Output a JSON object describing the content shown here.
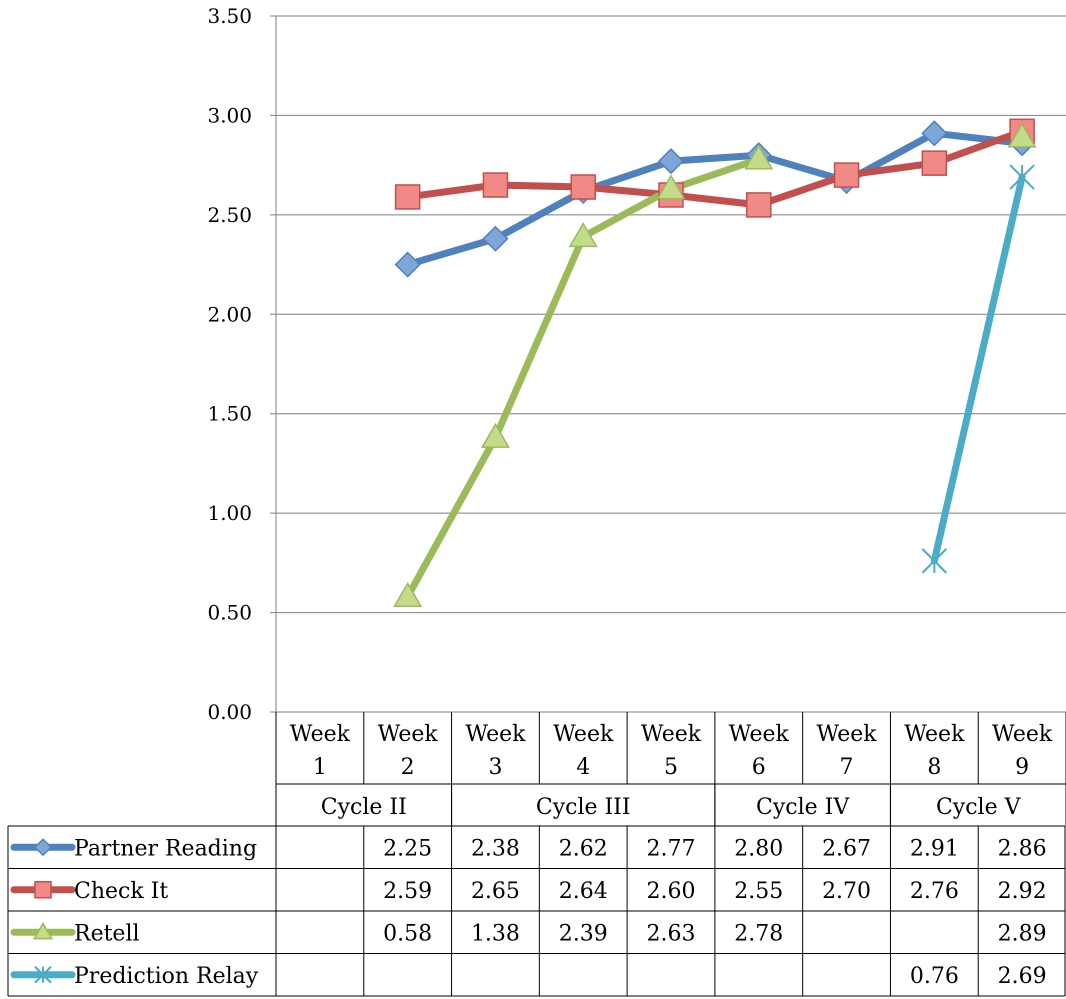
{
  "chart_data": {
    "type": "line",
    "title": "",
    "xlabel": "",
    "ylabel": "",
    "ylim": [
      0,
      3.5
    ],
    "yticks": [
      "0.00",
      "0.50",
      "1.00",
      "1.50",
      "2.00",
      "2.50",
      "3.00",
      "3.50"
    ],
    "grid": true,
    "legend": "data-table",
    "categories": [
      [
        "Week",
        "1"
      ],
      [
        "Week",
        "2"
      ],
      [
        "Week",
        "3"
      ],
      [
        "Week",
        "4"
      ],
      [
        "Week",
        "5"
      ],
      [
        "Week",
        "6"
      ],
      [
        "Week",
        "7"
      ],
      [
        "Week",
        "8"
      ],
      [
        "Week",
        "9"
      ]
    ],
    "cycles": [
      {
        "label": "Cycle II",
        "weeks": [
          1,
          2
        ]
      },
      {
        "label": "Cycle III",
        "weeks": [
          3,
          5
        ]
      },
      {
        "label": "Cycle IV",
        "weeks": [
          6,
          7
        ]
      },
      {
        "label": "Cycle V",
        "weeks": [
          8,
          9
        ]
      }
    ],
    "series": [
      {
        "name": "Partner Reading",
        "color": "#4f81bd",
        "marker": "diamond",
        "values": [
          null,
          2.25,
          2.38,
          2.62,
          2.77,
          2.8,
          2.67,
          2.91,
          2.86
        ],
        "labels": [
          "",
          "2.25",
          "2.38",
          "2.62",
          "2.77",
          "2.80",
          "2.67",
          "2.91",
          "2.86"
        ]
      },
      {
        "name": "Check It",
        "color": "#c0504d",
        "marker": "square",
        "values": [
          null,
          2.59,
          2.65,
          2.64,
          2.6,
          2.55,
          2.7,
          2.76,
          2.92
        ],
        "labels": [
          "",
          "2.59",
          "2.65",
          "2.64",
          "2.60",
          "2.55",
          "2.70",
          "2.76",
          "2.92"
        ]
      },
      {
        "name": "Retell",
        "color": "#9bbb59",
        "marker": "triangle",
        "values": [
          null,
          0.58,
          1.38,
          2.39,
          2.63,
          2.78,
          null,
          null,
          2.89
        ],
        "labels": [
          "",
          "0.58",
          "1.38",
          "2.39",
          "2.63",
          "2.78",
          "",
          "",
          "2.89"
        ]
      },
      {
        "name": "Prediction Relay",
        "color": "#4bacc6",
        "marker": "star",
        "values": [
          null,
          null,
          null,
          null,
          null,
          null,
          null,
          0.76,
          2.69
        ],
        "labels": [
          "",
          "",
          "",
          "",
          "",
          "",
          "",
          "0.76",
          "2.69"
        ]
      }
    ]
  }
}
